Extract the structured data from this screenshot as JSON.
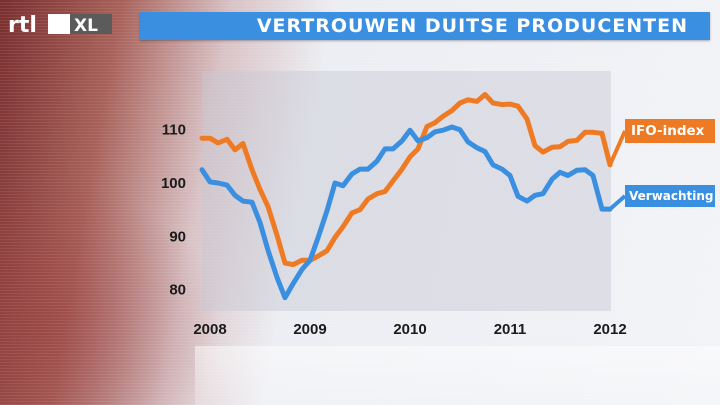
{
  "broadcaster": {
    "logo_text": "rtl XL",
    "icon": "rtl-xl-logo-icon"
  },
  "header": {
    "title": "VERTROUWEN DUITSE PRODUCENTEN",
    "accent_color": "#3b8fe0"
  },
  "chart_data": {
    "type": "line",
    "title": "VERTROUWEN DUITSE PRODUCENTEN",
    "xlabel": "",
    "ylabel": "",
    "xlim": [
      2007.92,
      2012.0
    ],
    "ylim": [
      76,
      121
    ],
    "x_ticks": [
      "2008",
      "2009",
      "2010",
      "2011",
      "2012"
    ],
    "y_ticks": [
      80,
      90,
      100,
      110
    ],
    "grid": false,
    "legend": "right",
    "series": [
      {
        "name": "IFO-index",
        "color": "#ee7b23",
        "points": [
          [
            2007.92,
            108.4
          ],
          [
            2008.0,
            108.4
          ],
          [
            2008.08,
            107.5
          ],
          [
            2008.17,
            108.2
          ],
          [
            2008.25,
            106.2
          ],
          [
            2008.33,
            107.4
          ],
          [
            2008.42,
            102.5
          ],
          [
            2008.5,
            98.8
          ],
          [
            2008.58,
            95.6
          ],
          [
            2008.67,
            90.2
          ],
          [
            2008.75,
            85.0
          ],
          [
            2008.83,
            84.7
          ],
          [
            2008.92,
            85.5
          ],
          [
            2009.0,
            85.5
          ],
          [
            2009.08,
            86.3
          ],
          [
            2009.17,
            87.3
          ],
          [
            2009.25,
            89.8
          ],
          [
            2009.33,
            91.8
          ],
          [
            2009.42,
            94.4
          ],
          [
            2009.5,
            95.0
          ],
          [
            2009.58,
            97.0
          ],
          [
            2009.67,
            98.0
          ],
          [
            2009.75,
            98.4
          ],
          [
            2009.83,
            100.4
          ],
          [
            2009.92,
            102.6
          ],
          [
            2010.0,
            104.9
          ],
          [
            2010.08,
            106.4
          ],
          [
            2010.17,
            110.6
          ],
          [
            2010.25,
            111.3
          ],
          [
            2010.33,
            112.5
          ],
          [
            2010.42,
            113.6
          ],
          [
            2010.5,
            115.0
          ],
          [
            2010.58,
            115.6
          ],
          [
            2010.67,
            115.3
          ],
          [
            2010.75,
            116.6
          ],
          [
            2010.83,
            115.0
          ],
          [
            2010.92,
            114.7
          ],
          [
            2011.0,
            114.8
          ],
          [
            2011.08,
            114.4
          ],
          [
            2011.17,
            112.0
          ],
          [
            2011.25,
            107.0
          ],
          [
            2011.33,
            105.8
          ],
          [
            2011.42,
            106.7
          ],
          [
            2011.5,
            106.8
          ],
          [
            2011.58,
            107.8
          ],
          [
            2011.67,
            108.0
          ],
          [
            2011.75,
            109.5
          ],
          [
            2011.83,
            109.5
          ],
          [
            2011.92,
            109.3
          ],
          [
            2012.0,
            103.4
          ]
        ]
      },
      {
        "name": "Verwachting",
        "color": "#3b8fe0",
        "points": [
          [
            2007.92,
            102.5
          ],
          [
            2008.0,
            100.2
          ],
          [
            2008.08,
            100.0
          ],
          [
            2008.17,
            99.6
          ],
          [
            2008.25,
            97.7
          ],
          [
            2008.33,
            96.6
          ],
          [
            2008.42,
            96.4
          ],
          [
            2008.5,
            92.6
          ],
          [
            2008.58,
            87.4
          ],
          [
            2008.67,
            82.3
          ],
          [
            2008.75,
            78.5
          ],
          [
            2008.83,
            81.1
          ],
          [
            2008.92,
            83.8
          ],
          [
            2009.0,
            85.5
          ],
          [
            2009.08,
            89.7
          ],
          [
            2009.17,
            94.8
          ],
          [
            2009.25,
            100.0
          ],
          [
            2009.33,
            99.5
          ],
          [
            2009.42,
            101.7
          ],
          [
            2009.5,
            102.6
          ],
          [
            2009.58,
            102.6
          ],
          [
            2009.67,
            104.1
          ],
          [
            2009.75,
            106.4
          ],
          [
            2009.83,
            106.4
          ],
          [
            2009.92,
            107.9
          ],
          [
            2010.0,
            109.9
          ],
          [
            2010.08,
            107.9
          ],
          [
            2010.17,
            108.5
          ],
          [
            2010.25,
            109.6
          ],
          [
            2010.33,
            109.9
          ],
          [
            2010.42,
            110.5
          ],
          [
            2010.5,
            110.0
          ],
          [
            2010.58,
            107.7
          ],
          [
            2010.67,
            106.6
          ],
          [
            2010.75,
            105.9
          ],
          [
            2010.83,
            103.4
          ],
          [
            2010.92,
            102.6
          ],
          [
            2011.0,
            101.4
          ],
          [
            2011.08,
            97.5
          ],
          [
            2011.17,
            96.6
          ],
          [
            2011.25,
            97.7
          ],
          [
            2011.33,
            98.0
          ],
          [
            2011.42,
            100.7
          ],
          [
            2011.5,
            102.0
          ],
          [
            2011.58,
            101.4
          ],
          [
            2011.67,
            102.4
          ],
          [
            2011.75,
            102.5
          ],
          [
            2011.83,
            101.4
          ],
          [
            2011.92,
            95.1
          ],
          [
            2012.0,
            95.1
          ]
        ]
      }
    ]
  }
}
